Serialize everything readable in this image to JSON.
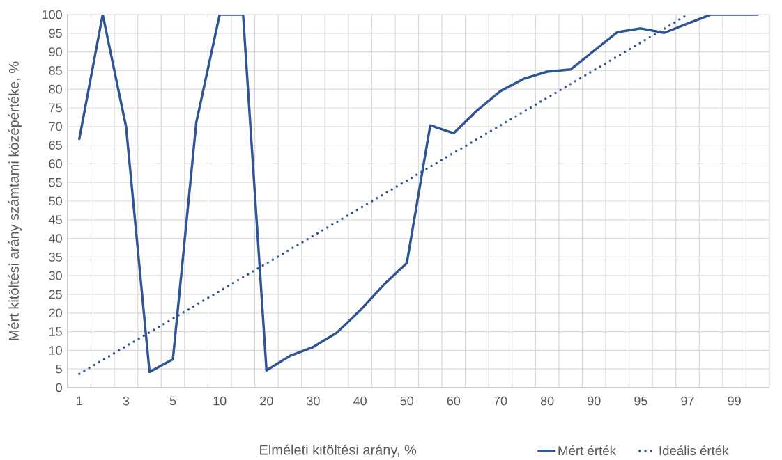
{
  "chart_data": {
    "type": "line",
    "xlabel": "Elméleti kitöltési arány, %",
    "ylabel": "Mért kitöltési arány számtami középértéke, %",
    "categories": [
      "1",
      null,
      "3",
      null,
      "5",
      null,
      "10",
      null,
      "20",
      null,
      "30",
      null,
      "40",
      null,
      "50",
      null,
      "60",
      null,
      "70",
      null,
      "80",
      null,
      "90",
      null,
      "95",
      null,
      "97",
      null,
      "99",
      null
    ],
    "series": [
      {
        "name": "Mért érték",
        "color": "#2f5597",
        "line_style": "solid",
        "values": [
          66.7,
          100,
          69.9,
          4.2,
          7.6,
          71.1,
          100,
          100,
          4.6,
          8.5,
          10.9,
          14.7,
          20.7,
          27.5,
          33.4,
          70.3,
          68.2,
          74.3,
          79.5,
          82.8,
          84.7,
          85.3,
          90.3,
          95.3,
          96.3,
          95.1,
          97.6,
          100,
          100,
          100
        ]
      },
      {
        "name": "Ideális érték",
        "color": "#2f5597",
        "line_style": "dotted",
        "values": [
          3.7,
          7.4,
          11.1,
          14.8,
          18.5,
          22.2,
          25.9,
          29.6,
          33.3,
          37,
          40.7,
          44.4,
          48.1,
          51.8,
          55.5,
          59.2,
          62.9,
          66.6,
          70.3,
          74,
          77.7,
          81.4,
          85.1,
          88.8,
          92.5,
          96.2,
          100,
          null,
          null,
          null
        ]
      }
    ],
    "ylim": [
      0,
      100
    ],
    "yticks": [
      0,
      5,
      10,
      15,
      20,
      25,
      30,
      35,
      40,
      45,
      50,
      55,
      60,
      65,
      70,
      75,
      80,
      85,
      90,
      95,
      100
    ],
    "grid": true,
    "legend": "bottom right"
  }
}
